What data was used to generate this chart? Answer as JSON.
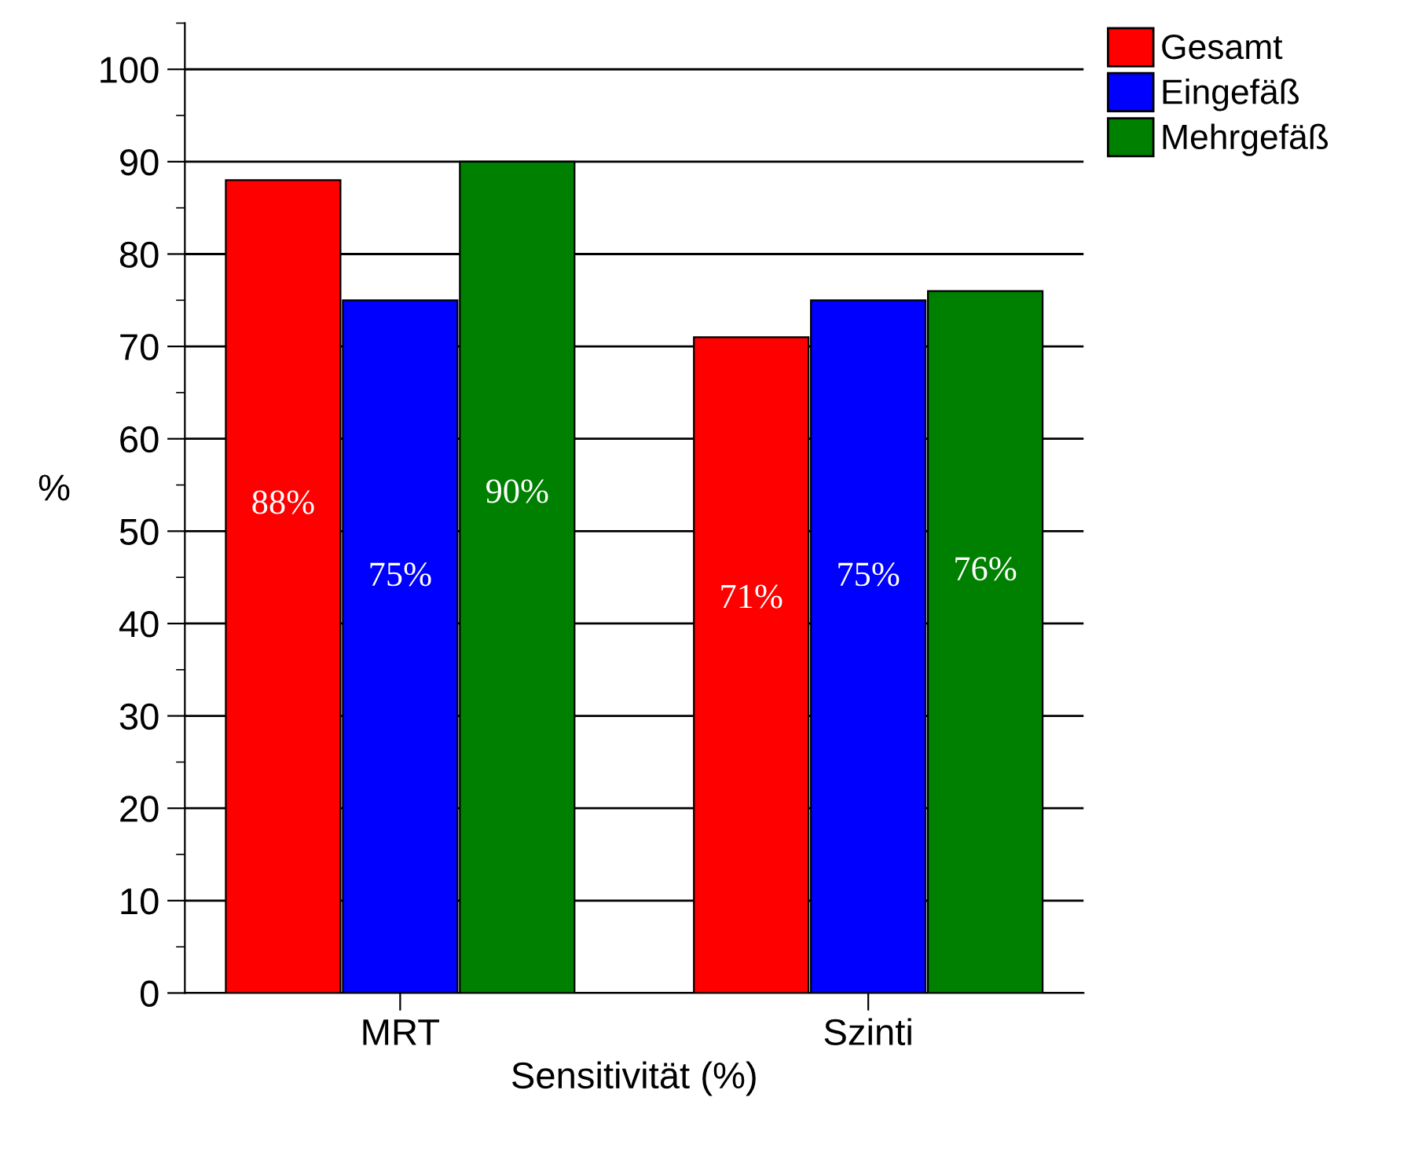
{
  "chart_data": {
    "type": "bar",
    "xlabel": "Sensitivität (%)",
    "ylabel": "%",
    "categories": [
      "MRT",
      "Szinti"
    ],
    "series": [
      {
        "name": "Gesamt",
        "color": "#ff0000",
        "values": [
          88,
          71
        ],
        "value_labels": [
          "88%",
          "71%"
        ]
      },
      {
        "name": "Eingefäß",
        "color": "#0000ff",
        "values": [
          75,
          75
        ],
        "value_labels": [
          "75%",
          "75%"
        ]
      },
      {
        "name": "Mehrgefäß",
        "color": "#008000",
        "values": [
          90,
          76
        ],
        "value_labels": [
          "90%",
          "76%"
        ]
      }
    ],
    "ylim": [
      0,
      105
    ],
    "yticks": [
      0,
      10,
      20,
      30,
      40,
      50,
      60,
      70,
      80,
      90,
      100
    ],
    "grid": "y",
    "legend": "top right"
  }
}
